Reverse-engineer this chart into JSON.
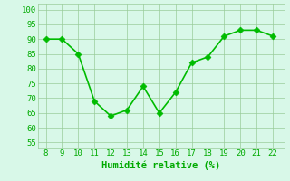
{
  "x": [
    8,
    9,
    10,
    11,
    12,
    13,
    14,
    15,
    16,
    17,
    18,
    19,
    20,
    21,
    22
  ],
  "y": [
    90,
    90,
    85,
    69,
    64,
    66,
    74,
    65,
    72,
    82,
    84,
    91,
    93,
    93,
    91
  ],
  "line_color": "#00bb00",
  "marker_color": "#00bb00",
  "bg_color": "#d8f8e8",
  "grid_color": "#99cc99",
  "xlabel": "Humidité relative (%)",
  "xlabel_color": "#00aa00",
  "tick_color": "#00aa00",
  "ylim": [
    53,
    102
  ],
  "xlim": [
    7.5,
    22.7
  ],
  "yticks": [
    55,
    60,
    65,
    70,
    75,
    80,
    85,
    90,
    95,
    100
  ],
  "xticks": [
    8,
    9,
    10,
    11,
    12,
    13,
    14,
    15,
    16,
    17,
    18,
    19,
    20,
    21,
    22
  ],
  "xlabel_fontsize": 7.5,
  "tick_fontsize": 6.5,
  "line_width": 1.2,
  "marker_size": 3.5
}
